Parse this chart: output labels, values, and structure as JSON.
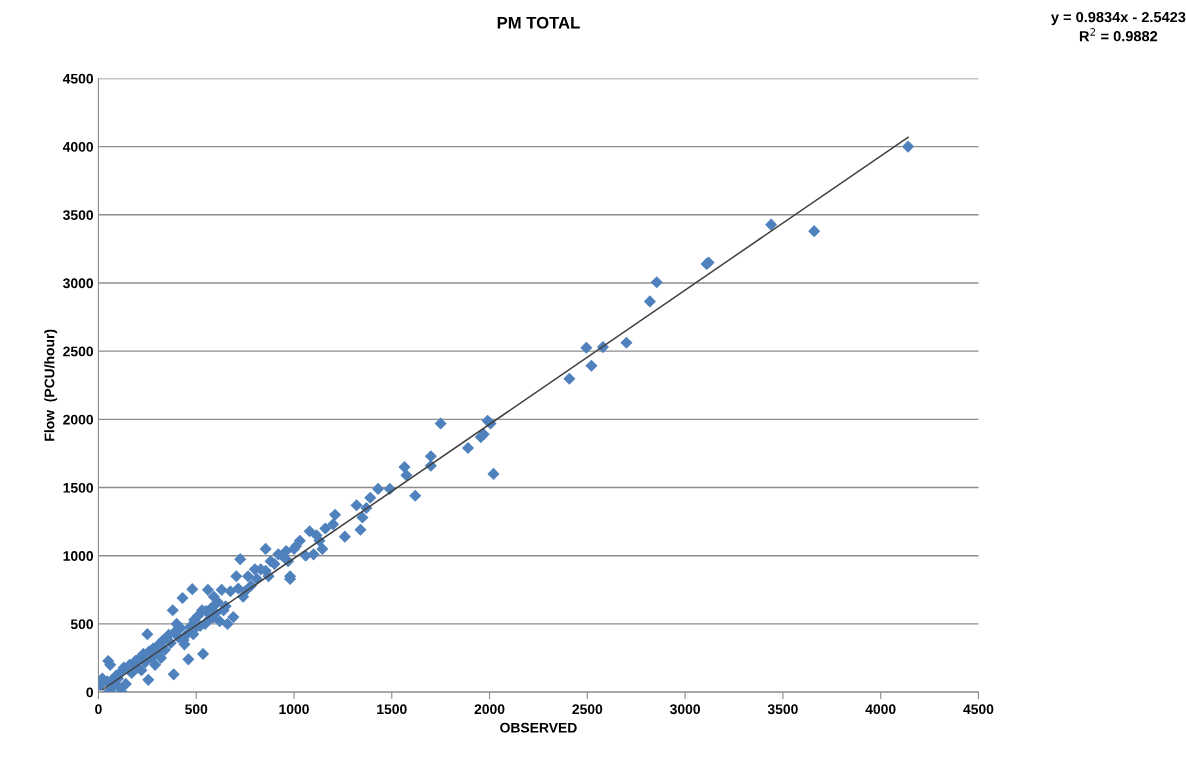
{
  "chart_data": {
    "type": "scatter",
    "title": "PM TOTAL",
    "xlabel": "OBSERVED",
    "ylabel": "Flow  (PCU/hour)",
    "xlim": [
      0,
      4500
    ],
    "xticks": [
      0,
      500,
      1000,
      1500,
      2000,
      2500,
      3000,
      3500,
      4000,
      4500
    ],
    "ylim": [
      0,
      4500
    ],
    "yticks": [
      0,
      500,
      1000,
      1500,
      2000,
      2500,
      3000,
      3500,
      4000,
      4500
    ],
    "grid": "y",
    "annotations": [
      "y = 0.9834x - 2.5423",
      "R$^{2}$ = 0.9882"
    ],
    "series": [
      {
        "color": "#4f81bd",
        "marker": "diamond",
        "x": [
          10,
          20,
          45,
          50,
          60,
          70,
          80,
          90,
          100,
          110,
          115,
          120,
          130,
          140,
          150,
          160,
          170,
          190,
          200,
          210,
          220,
          230,
          240,
          250,
          255,
          260,
          270,
          280,
          290,
          300,
          310,
          320,
          330,
          340,
          360,
          370,
          380,
          385,
          390,
          400,
          410,
          420,
          430,
          435,
          440,
          450,
          460,
          470,
          480,
          485,
          490,
          495,
          510,
          520,
          530,
          535,
          545,
          550,
          560,
          570,
          580,
          585,
          590,
          600,
          610,
          620,
          630,
          640,
          650,
          660,
          675,
          690,
          705,
          715,
          725,
          740,
          750,
          765,
          780,
          800,
          810,
          830,
          855,
          855,
          870,
          880,
          900,
          920,
          940,
          960,
          970,
          980,
          980,
          1000,
          1010,
          1030,
          1060,
          1080,
          1100,
          1115,
          1130,
          1145,
          1160,
          1200,
          1210,
          1260,
          1320,
          1340,
          1350,
          1370,
          1390,
          1430,
          1490,
          1565,
          1575,
          1620,
          1700,
          1700,
          1750,
          1890,
          1955,
          1970,
          1990,
          2005,
          2020,
          2408,
          2495,
          2521,
          2580,
          2700,
          2820,
          2855,
          3110,
          3120,
          3440,
          3660,
          4140,
          50,
          60
        ],
        "values": [
          50,
          100,
          80,
          228,
          200,
          90,
          60,
          120,
          100,
          30,
          150,
          0,
          180,
          60,
          170,
          200,
          140,
          230,
          180,
          250,
          160,
          280,
          220,
          425,
          90,
          300,
          250,
          320,
          200,
          290,
          350,
          250,
          380,
          310,
          420,
          360,
          600,
          130,
          440,
          500,
          400,
          470,
          690,
          380,
          350,
          420,
          240,
          480,
          755,
          425,
          530,
          470,
          560,
          485,
          600,
          280,
          500,
          595,
          750,
          540,
          620,
          545,
          700,
          580,
          660,
          520,
          750,
          600,
          630,
          500,
          740,
          550,
          850,
          760,
          975,
          700,
          740,
          850,
          780,
          900,
          830,
          900,
          1050,
          890,
          850,
          960,
          940,
          1010,
          1000,
          1035,
          960,
          830,
          850,
          1050,
          1070,
          1110,
          1000,
          1180,
          1010,
          1150,
          1110,
          1050,
          1200,
          1230,
          1300,
          1140,
          1370,
          1190,
          1280,
          1350,
          1425,
          1490,
          1490,
          1650,
          1590,
          1440,
          1730,
          1660,
          1970,
          1790,
          1870,
          1890,
          1990,
          1970,
          1600,
          2298,
          2525,
          2393,
          2530,
          2562,
          2865,
          3005,
          3140,
          3150,
          3428,
          3380,
          4000,
          0,
          10
        ]
      },
      {
        "type": "line",
        "color": "#404040",
        "x": [
          20,
          4140
        ],
        "values": [
          17,
          4069
        ]
      }
    ]
  }
}
